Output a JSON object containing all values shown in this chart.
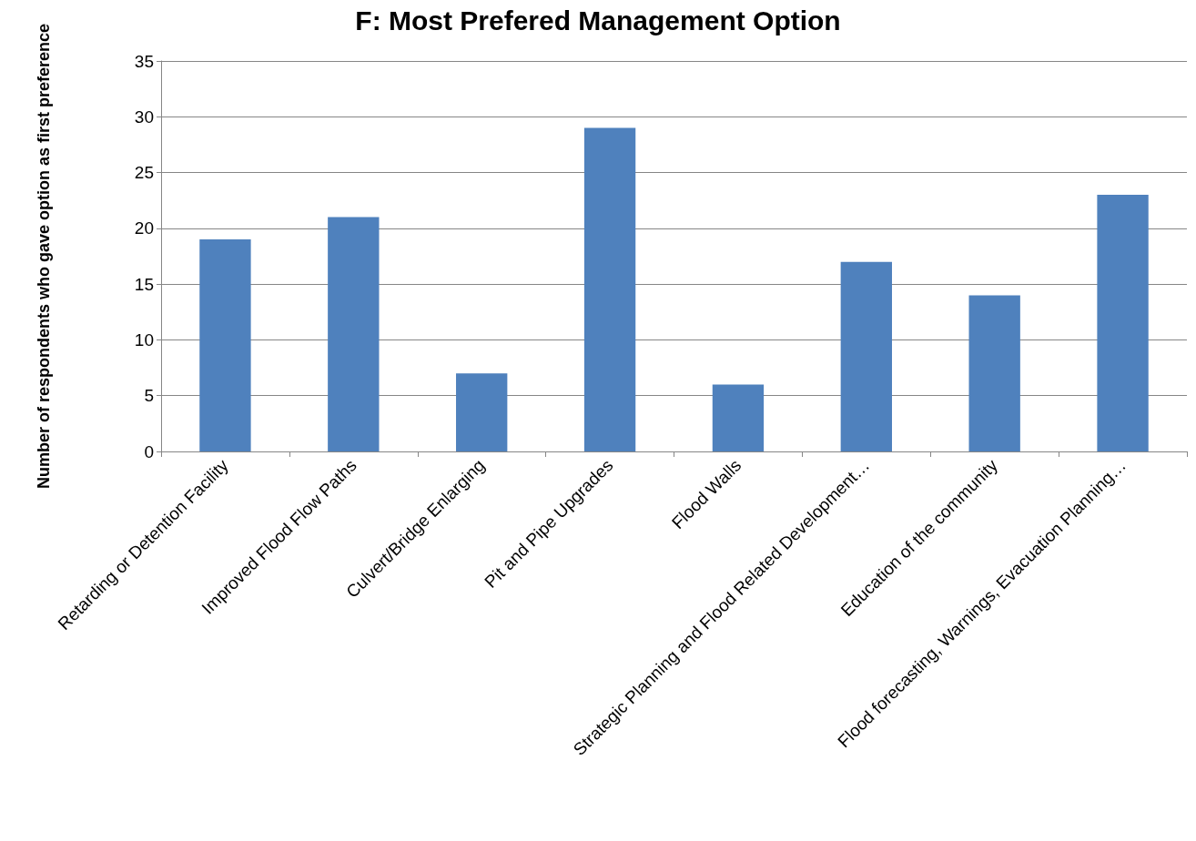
{
  "chart_data": {
    "type": "bar",
    "title": "F: Most Prefered Management Option",
    "ylabel": "Number of respondents who gave option as first preference",
    "categories": [
      "Retarding or Detention Facility",
      "Improved Flood Flow Paths",
      "Culvert/Bridge Enlarging",
      "Pit and Pipe Upgrades",
      "Flood Walls",
      "Strategic Planning and Flood Related Development…",
      "Education of the community",
      "Flood forecasting, Warnings, Evacuation Planning…"
    ],
    "values": [
      19,
      21,
      7,
      29,
      6,
      17,
      14,
      23
    ],
    "color": "#4f81bd",
    "ylim": [
      0,
      35
    ],
    "yticks": [
      0,
      5,
      10,
      15,
      20,
      25,
      30,
      35
    ],
    "grid": "y"
  }
}
